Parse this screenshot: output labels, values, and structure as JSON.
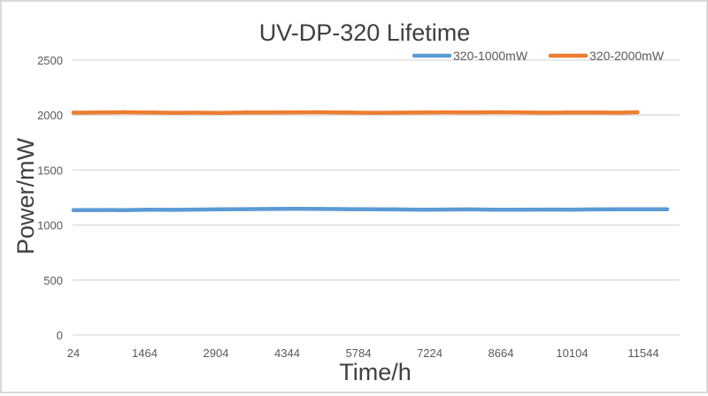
{
  "chart_data": {
    "type": "line",
    "title": "UV-DP-320 Lifetime",
    "xlabel": "Time/h",
    "ylabel": "Power/mW",
    "ylim": [
      0,
      2500
    ],
    "xlim": [
      24,
      12350
    ],
    "y_ticks": [
      "0",
      "500",
      "1000",
      "1500",
      "2000",
      "2500"
    ],
    "x_ticks": [
      "24",
      "1464",
      "2904",
      "4344",
      "5784",
      "7224",
      "8664",
      "10104",
      "11544"
    ],
    "grid": true,
    "legend_position": "top-right",
    "series": [
      {
        "name": "320-1000mW",
        "color": "#5b9bd5",
        "x": [
          24,
          524,
          1024,
          1524,
          2024,
          2524,
          3024,
          3524,
          4024,
          4524,
          5024,
          5524,
          6024,
          6524,
          7024,
          7524,
          8024,
          8524,
          9024,
          9524,
          10024,
          10524,
          11024,
          11524,
          12024
        ],
        "values": [
          1135,
          1137,
          1136,
          1139,
          1138,
          1141,
          1143,
          1145,
          1146,
          1147,
          1146,
          1145,
          1143,
          1142,
          1140,
          1141,
          1142,
          1140,
          1139,
          1141,
          1140,
          1142,
          1143,
          1144,
          1143
        ]
      },
      {
        "name": "320-2000mW",
        "color": "#ed7d31",
        "x": [
          24,
          524,
          1024,
          1524,
          2024,
          2524,
          3024,
          3524,
          4024,
          4524,
          5024,
          5524,
          6024,
          6524,
          7024,
          7524,
          8024,
          8524,
          9024,
          9524,
          10024,
          10524,
          11024,
          11424
        ],
        "values": [
          2022,
          2024,
          2026,
          2023,
          2021,
          2022,
          2020,
          2023,
          2024,
          2025,
          2026,
          2023,
          2021,
          2022,
          2023,
          2025,
          2024,
          2026,
          2025,
          2022,
          2023,
          2024,
          2022,
          2026
        ]
      }
    ]
  }
}
